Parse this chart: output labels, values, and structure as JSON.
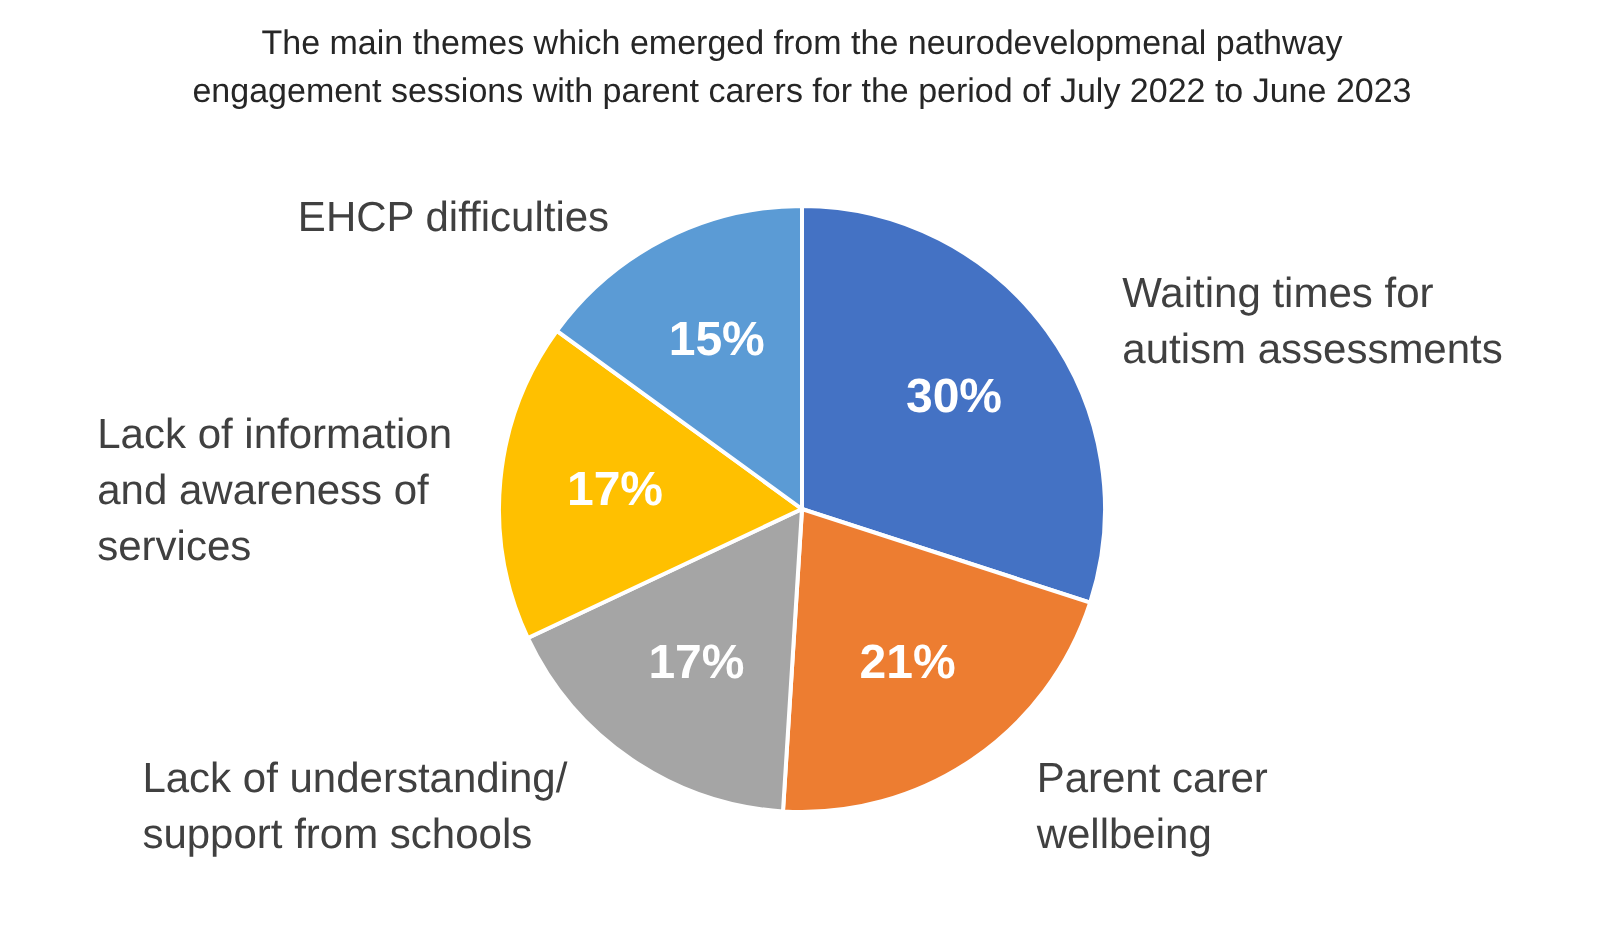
{
  "chart_data": {
    "type": "pie",
    "title": "The main themes which emerged from the neurodevelopmenal pathway\nengagement sessions with parent carers for the period of July 2022 to June 2023",
    "categories": [
      "Waiting times for\nautism assessments",
      "Parent carer\nwellbeing",
      "Lack of understanding/\nsupport from schools",
      "Lack of information\nand awareness of\nservices",
      "EHCP difficulties"
    ],
    "values": [
      30,
      21,
      17,
      17,
      15
    ],
    "colors": [
      "#4472c4",
      "#ed7d31",
      "#a5a5a5",
      "#ffc000",
      "#5b9bd5"
    ],
    "value_labels": [
      "30%",
      "21%",
      "17%",
      "17%",
      "15%"
    ]
  }
}
